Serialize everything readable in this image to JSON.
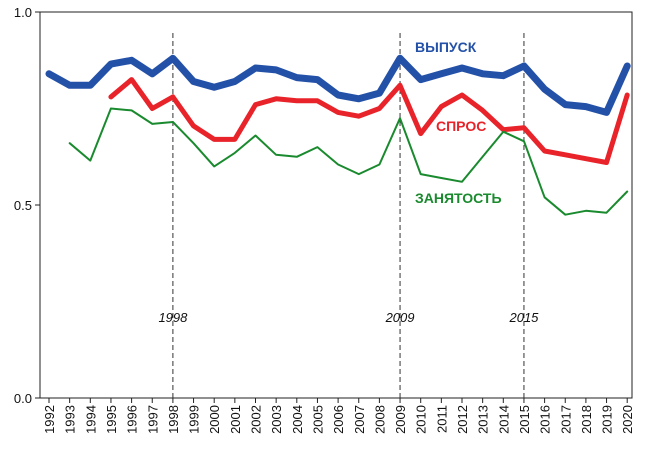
{
  "chart_data": {
    "type": "line",
    "title": "",
    "xlabel": "",
    "ylabel": "",
    "x": [
      "1992",
      "1993",
      "1994",
      "1995",
      "1996",
      "1997",
      "1998",
      "1999",
      "2000",
      "2001",
      "2002",
      "2003",
      "2004",
      "2005",
      "2006",
      "2007",
      "2008",
      "2009",
      "2010",
      "2011",
      "2012",
      "2013",
      "2014",
      "2015",
      "2016",
      "2017",
      "2018",
      "2019",
      "2020"
    ],
    "ylim": [
      0.0,
      1.0
    ],
    "yticks": [
      "0.0",
      "0.5",
      "1.0"
    ],
    "grid": false,
    "series": [
      {
        "name": "ВЫПУСК",
        "color": "#2451a8",
        "values": [
          0.84,
          0.81,
          0.81,
          0.865,
          0.875,
          0.84,
          0.88,
          0.82,
          0.805,
          0.82,
          0.855,
          0.85,
          0.83,
          0.825,
          0.785,
          0.775,
          0.79,
          0.88,
          0.825,
          0.84,
          0.855,
          0.84,
          0.835,
          0.86,
          0.8,
          0.76,
          0.755,
          0.74,
          0.86
        ]
      },
      {
        "name": "СПРОС",
        "color": "#e8232a",
        "values": [
          null,
          null,
          null,
          0.78,
          0.825,
          0.75,
          0.78,
          0.705,
          0.67,
          0.67,
          0.76,
          0.775,
          0.77,
          0.77,
          0.74,
          0.73,
          0.75,
          0.81,
          0.685,
          0.755,
          0.785,
          0.745,
          0.695,
          0.7,
          0.64,
          0.63,
          0.62,
          0.61,
          0.785
        ]
      },
      {
        "name": "ЗАНЯТОСТЬ",
        "color": "#1a8a2e",
        "values": [
          null,
          0.66,
          0.615,
          0.75,
          0.745,
          0.71,
          0.715,
          0.66,
          0.6,
          0.635,
          0.68,
          0.63,
          0.625,
          0.65,
          0.605,
          0.58,
          0.605,
          0.725,
          0.58,
          0.57,
          0.56,
          0.625,
          0.69,
          0.665,
          0.52,
          0.475,
          0.485,
          0.48,
          0.535
        ]
      }
    ],
    "event_lines": [
      {
        "x": "1998",
        "label": "1998"
      },
      {
        "x": "2009",
        "label": "2009"
      },
      {
        "x": "2015",
        "label": "2015"
      }
    ]
  }
}
